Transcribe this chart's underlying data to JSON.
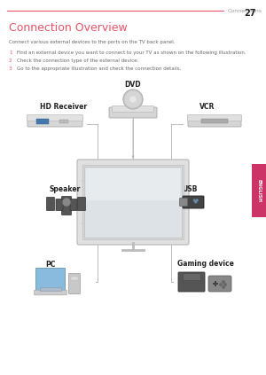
{
  "page_header": "Connections",
  "page_number": "27",
  "title": "Connection Overview",
  "subtitle": "Connect various external devices to the ports on the TV back panel.",
  "steps": [
    {
      "num": "1",
      "text": "Find an external device you want to connect to your TV as shown on the following illustration."
    },
    {
      "num": "2",
      "text": "Check the connection type of the external device."
    },
    {
      "num": "3",
      "text": "Go to the appropriate illustration and check the connection details."
    }
  ],
  "device_labels": [
    "HD Receiver",
    "DVD",
    "VCR",
    "Speaker",
    "USB",
    "PC",
    "Gaming device"
  ],
  "header_line_color": "#e8546a",
  "title_color": "#e8546a",
  "step_num_color": "#e8546a",
  "text_color": "#666666",
  "header_text_color": "#999999",
  "bg_color": "#ffffff",
  "english_tab_color": "#cc3366",
  "line_color": "#bbbbbb",
  "label_color": "#222222",
  "tv_frame_color": "#d5d5d5",
  "tv_screen_color": "#e8eaec",
  "tv_screen_highlight": "#f5f5f5"
}
